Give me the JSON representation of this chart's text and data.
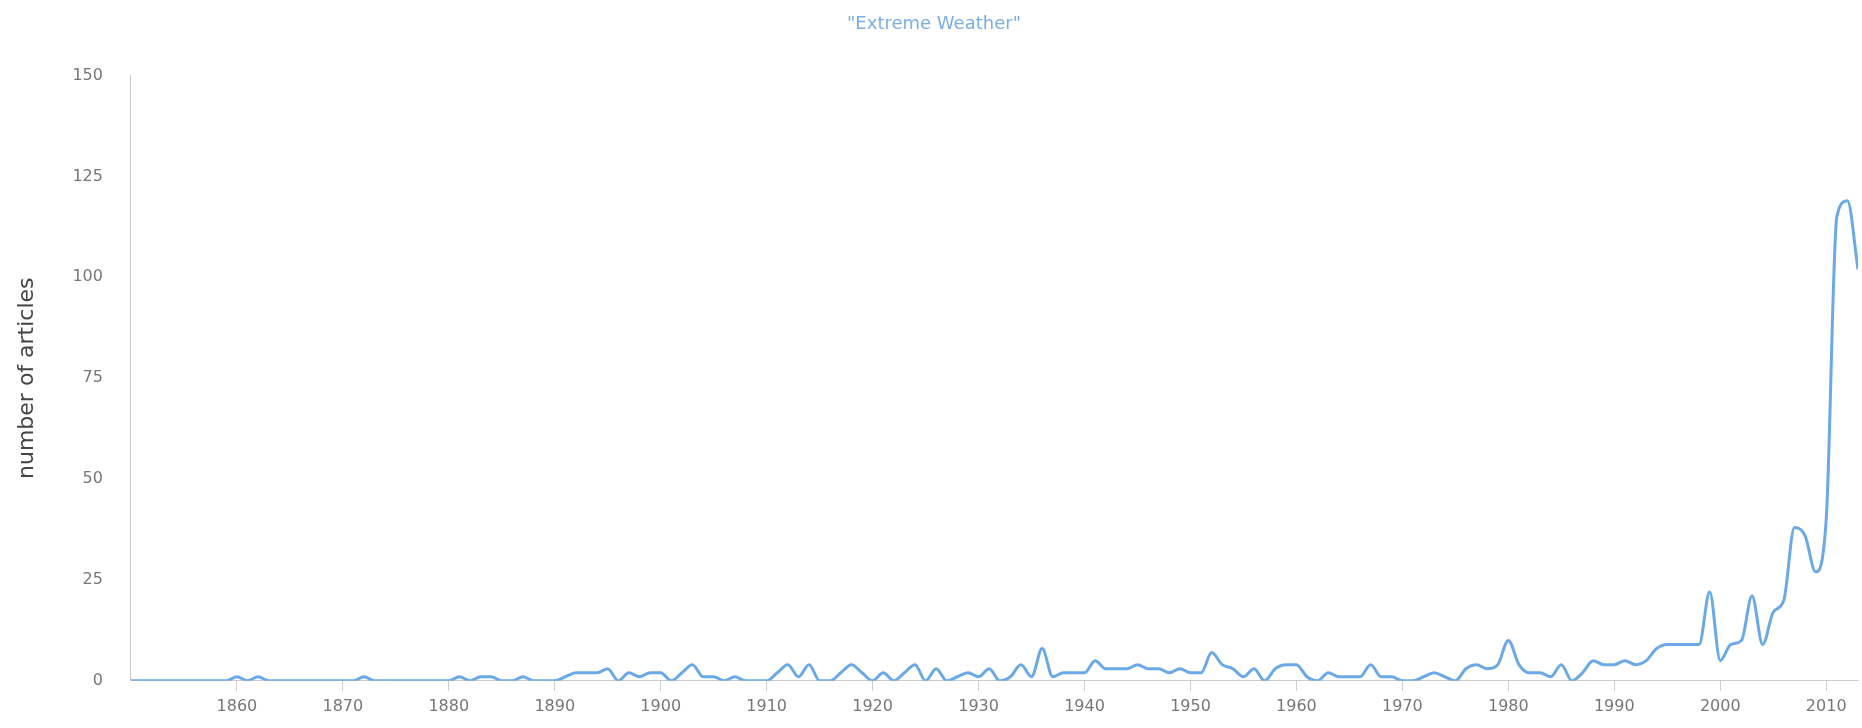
{
  "chart_data": {
    "type": "line",
    "title": "\"Extreme Weather\"",
    "ylabel": "number of articles",
    "x": [
      1850,
      1851,
      1852,
      1853,
      1854,
      1855,
      1856,
      1857,
      1858,
      1859,
      1860,
      1861,
      1862,
      1863,
      1864,
      1865,
      1866,
      1867,
      1868,
      1869,
      1870,
      1871,
      1872,
      1873,
      1874,
      1875,
      1876,
      1877,
      1878,
      1879,
      1880,
      1881,
      1882,
      1883,
      1884,
      1885,
      1886,
      1887,
      1888,
      1889,
      1890,
      1891,
      1892,
      1893,
      1894,
      1895,
      1896,
      1897,
      1898,
      1899,
      1900,
      1901,
      1902,
      1903,
      1904,
      1905,
      1906,
      1907,
      1908,
      1909,
      1910,
      1911,
      1912,
      1913,
      1914,
      1915,
      1916,
      1917,
      1918,
      1919,
      1920,
      1921,
      1922,
      1923,
      1924,
      1925,
      1926,
      1927,
      1928,
      1929,
      1930,
      1931,
      1932,
      1933,
      1934,
      1935,
      1936,
      1937,
      1938,
      1939,
      1940,
      1941,
      1942,
      1943,
      1944,
      1945,
      1946,
      1947,
      1948,
      1949,
      1950,
      1951,
      1952,
      1953,
      1954,
      1955,
      1956,
      1957,
      1958,
      1959,
      1960,
      1961,
      1962,
      1963,
      1964,
      1965,
      1966,
      1967,
      1968,
      1969,
      1970,
      1971,
      1972,
      1973,
      1974,
      1975,
      1976,
      1977,
      1978,
      1979,
      1980,
      1981,
      1982,
      1983,
      1984,
      1985,
      1986,
      1987,
      1988,
      1989,
      1990,
      1991,
      1992,
      1993,
      1994,
      1995,
      1996,
      1997,
      1998,
      1999,
      2000,
      2001,
      2002,
      2003,
      2004,
      2005,
      2006,
      2007,
      2008,
      2009,
      2010,
      2011,
      2012,
      2013
    ],
    "series": [
      {
        "color": "#6aa9e6",
        "values": [
          0,
          0,
          0,
          0,
          0,
          0,
          0,
          0,
          0,
          0,
          1,
          0,
          1,
          0,
          0,
          0,
          0,
          0,
          0,
          0,
          0,
          0,
          1,
          0,
          0,
          0,
          0,
          0,
          0,
          0,
          0,
          1,
          0,
          1,
          1,
          0,
          0,
          1,
          0,
          0,
          0,
          1,
          2,
          2,
          2,
          3,
          0,
          2,
          1,
          2,
          2,
          0,
          2,
          4,
          1,
          1,
          0,
          1,
          0,
          0,
          0,
          2,
          4,
          1,
          4,
          0,
          0,
          2,
          4,
          2,
          0,
          2,
          0,
          2,
          4,
          0,
          3,
          0,
          1,
          2,
          1,
          3,
          0,
          1,
          4,
          1,
          8,
          1,
          2,
          2,
          2,
          5,
          3,
          3,
          3,
          4,
          3,
          3,
          2,
          3,
          2,
          2,
          7,
          4,
          3,
          1,
          3,
          0,
          3,
          4,
          4,
          1,
          0,
          2,
          1,
          1,
          1,
          4,
          1,
          1,
          0,
          0,
          1,
          2,
          1,
          0,
          3,
          4,
          3,
          4,
          10,
          4,
          2,
          2,
          1,
          4,
          0,
          2,
          5,
          4,
          4,
          5,
          4,
          5,
          8,
          9,
          9,
          9,
          9,
          22,
          5,
          9,
          10,
          21,
          9,
          17,
          20,
          38,
          36,
          27,
          40,
          115,
          119,
          102
        ]
      }
    ],
    "xlim": [
      1850,
      2013
    ],
    "xticks": [
      1860,
      1870,
      1880,
      1890,
      1900,
      1910,
      1920,
      1930,
      1940,
      1950,
      1960,
      1970,
      1980,
      1990,
      2000,
      2010
    ],
    "ylim": [
      0,
      150
    ],
    "yticks": [
      0,
      25,
      50,
      75,
      100,
      125,
      150
    ],
    "grid": false,
    "legend": false,
    "marker": "none",
    "line_style": "solid"
  }
}
